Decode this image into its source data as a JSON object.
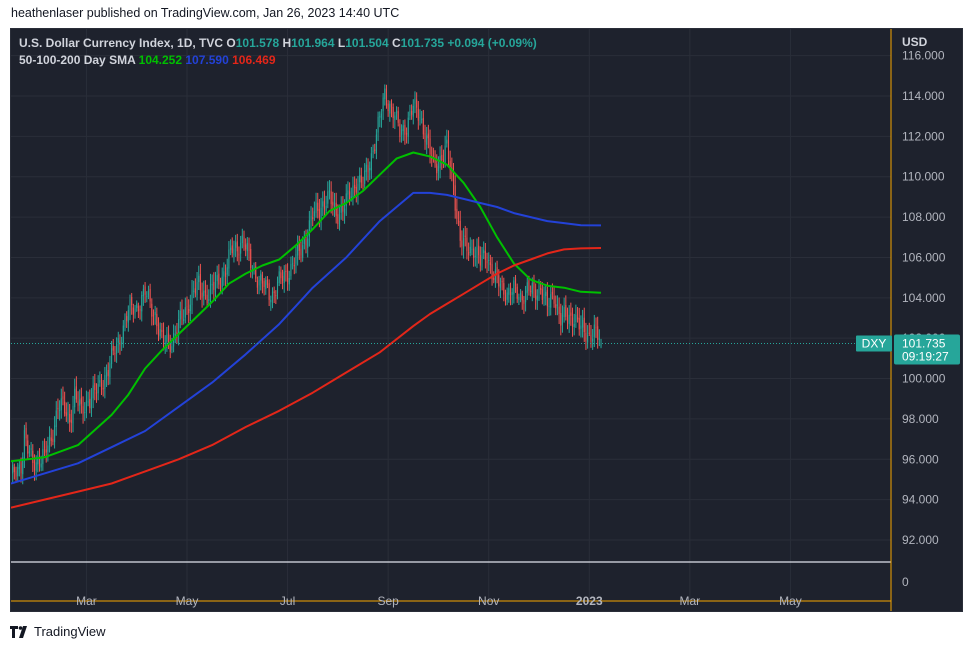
{
  "header": {
    "text": "heathenlaser published on TradingView.com, Jan 26, 2023 14:40 UTC"
  },
  "legend": {
    "symbol": "U.S. Dollar Currency Index, 1D, TVC",
    "o_label": "O",
    "o_value": "101.578",
    "h_label": "H",
    "h_value": "101.964",
    "l_label": "L",
    "l_value": "101.504",
    "c_label": "C",
    "c_value": "101.735",
    "change": "+0.094 (+0.09%)",
    "sma_label": "50-100-200 Day SMA",
    "sma50": "104.252",
    "sma100": "107.590",
    "sma200": "106.469"
  },
  "price_scale": {
    "currency": "USD",
    "bottom_label": "0"
  },
  "price_tag": {
    "ticker": "DXY",
    "price": "101.735",
    "countdown": "09:19:27"
  },
  "footer": {
    "brand": "TradingView"
  },
  "colors": {
    "background": "#1e222d",
    "grid": "#2a2e39",
    "up": "#26a69a",
    "down": "#ef5350",
    "sma50": "#00c000",
    "sma100": "#2342d8",
    "sma200": "#e32619",
    "axis_text": "#b2b5be",
    "crosshair": "#f7a600"
  },
  "chart_data": {
    "type": "candlestick",
    "title": "U.S. Dollar Currency Index, 1D, TVC",
    "ylabel": "USD",
    "ylim": [
      90.5,
      117
    ],
    "yticks": [
      "92.000",
      "94.000",
      "96.000",
      "98.000",
      "100.000",
      "102.000",
      "104.000",
      "106.000",
      "108.000",
      "110.000",
      "112.000",
      "114.000",
      "116.000"
    ],
    "ytick_values": [
      92,
      94,
      96,
      98,
      100,
      102,
      104,
      106,
      108,
      110,
      112,
      114,
      116
    ],
    "xtick_labels": [
      "Mar",
      "May",
      "Jul",
      "Sep",
      "Nov",
      "2023",
      "Mar",
      "May"
    ],
    "xtick_positions": [
      45,
      105,
      165,
      225,
      285,
      345,
      405,
      465
    ],
    "xlim": [
      0,
      525
    ],
    "price_anchors": [
      [
        0,
        95.0
      ],
      [
        6,
        95.8
      ],
      [
        8,
        97.2
      ],
      [
        10,
        96.4
      ],
      [
        13,
        95.8
      ],
      [
        16,
        96.0
      ],
      [
        20,
        96.2
      ],
      [
        24,
        97.0
      ],
      [
        28,
        98.7
      ],
      [
        31,
        98.5
      ],
      [
        35,
        98.0
      ],
      [
        38,
        99.2
      ],
      [
        42,
        98.3
      ],
      [
        46,
        99.0
      ],
      [
        52,
        99.4
      ],
      [
        58,
        100.5
      ],
      [
        64,
        101.8
      ],
      [
        70,
        103.3
      ],
      [
        75,
        103.6
      ],
      [
        80,
        104.2
      ],
      [
        86,
        103.2
      ],
      [
        90,
        101.8
      ],
      [
        96,
        101.9
      ],
      [
        100,
        102.6
      ],
      [
        106,
        103.8
      ],
      [
        112,
        104.6
      ],
      [
        118,
        104.1
      ],
      [
        124,
        104.9
      ],
      [
        128,
        105.3
      ],
      [
        132,
        106.4
      ],
      [
        138,
        106.8
      ],
      [
        142,
        106.0
      ],
      [
        148,
        104.8
      ],
      [
        156,
        104.2
      ],
      [
        162,
        105.0
      ],
      [
        168,
        105.6
      ],
      [
        174,
        106.6
      ],
      [
        180,
        108.0
      ],
      [
        186,
        108.7
      ],
      [
        190,
        108.9
      ],
      [
        194,
        108.2
      ],
      [
        198,
        108.4
      ],
      [
        202,
        109.0
      ],
      [
        206,
        109.8
      ],
      [
        210,
        109.6
      ],
      [
        216,
        111.4
      ],
      [
        220,
        112.8
      ],
      [
        223,
        114.1
      ],
      [
        228,
        113.2
      ],
      [
        232,
        112.2
      ],
      [
        236,
        112.6
      ],
      [
        240,
        113.4
      ],
      [
        244,
        113.1
      ],
      [
        248,
        111.8
      ],
      [
        252,
        110.5
      ],
      [
        256,
        110.9
      ],
      [
        260,
        111.3
      ],
      [
        264,
        109.6
      ],
      [
        268,
        106.8
      ],
      [
        272,
        106.4
      ],
      [
        276,
        106.5
      ],
      [
        280,
        105.7
      ],
      [
        284,
        106.2
      ],
      [
        288,
        105.0
      ],
      [
        292,
        104.6
      ],
      [
        296,
        104.3
      ],
      [
        300,
        104.3
      ],
      [
        304,
        104.1
      ],
      [
        308,
        104.4
      ],
      [
        312,
        104.2
      ],
      [
        316,
        104.6
      ],
      [
        320,
        103.5
      ],
      [
        324,
        104.2
      ],
      [
        328,
        102.9
      ],
      [
        332,
        103.0
      ],
      [
        336,
        103.1
      ],
      [
        340,
        102.4
      ],
      [
        344,
        102.2
      ],
      [
        348,
        102.3
      ],
      [
        352,
        101.7
      ]
    ],
    "series": [
      {
        "name": "SMA 50",
        "color": "#00c000",
        "points": [
          [
            0,
            95.9
          ],
          [
            20,
            96.1
          ],
          [
            40,
            96.7
          ],
          [
            60,
            98.2
          ],
          [
            70,
            99.2
          ],
          [
            80,
            100.5
          ],
          [
            90,
            101.4
          ],
          [
            100,
            102.2
          ],
          [
            110,
            103.0
          ],
          [
            120,
            103.8
          ],
          [
            130,
            104.7
          ],
          [
            140,
            105.2
          ],
          [
            150,
            105.6
          ],
          [
            160,
            105.9
          ],
          [
            170,
            106.6
          ],
          [
            180,
            107.4
          ],
          [
            190,
            108.3
          ],
          [
            200,
            108.7
          ],
          [
            210,
            109.3
          ],
          [
            220,
            110.1
          ],
          [
            230,
            110.9
          ],
          [
            240,
            111.2
          ],
          [
            250,
            111.0
          ],
          [
            260,
            110.6
          ],
          [
            270,
            109.7
          ],
          [
            280,
            108.5
          ],
          [
            290,
            107.0
          ],
          [
            300,
            105.7
          ],
          [
            310,
            104.9
          ],
          [
            320,
            104.6
          ],
          [
            330,
            104.5
          ],
          [
            340,
            104.3
          ],
          [
            352,
            104.25
          ]
        ]
      },
      {
        "name": "SMA 100",
        "color": "#2342d8",
        "points": [
          [
            0,
            94.8
          ],
          [
            20,
            95.3
          ],
          [
            40,
            95.8
          ],
          [
            60,
            96.6
          ],
          [
            80,
            97.4
          ],
          [
            100,
            98.6
          ],
          [
            120,
            99.8
          ],
          [
            140,
            101.2
          ],
          [
            160,
            102.7
          ],
          [
            170,
            103.6
          ],
          [
            180,
            104.5
          ],
          [
            200,
            106.0
          ],
          [
            220,
            107.8
          ],
          [
            240,
            109.2
          ],
          [
            250,
            109.2
          ],
          [
            260,
            109.1
          ],
          [
            270,
            108.9
          ],
          [
            280,
            108.7
          ],
          [
            290,
            108.5
          ],
          [
            300,
            108.2
          ],
          [
            310,
            108.0
          ],
          [
            320,
            107.8
          ],
          [
            330,
            107.7
          ],
          [
            340,
            107.6
          ],
          [
            352,
            107.59
          ]
        ]
      },
      {
        "name": "SMA 200",
        "color": "#e32619",
        "points": [
          [
            0,
            93.6
          ],
          [
            20,
            94.0
          ],
          [
            40,
            94.4
          ],
          [
            60,
            94.8
          ],
          [
            80,
            95.4
          ],
          [
            100,
            96.0
          ],
          [
            120,
            96.7
          ],
          [
            140,
            97.6
          ],
          [
            160,
            98.4
          ],
          [
            180,
            99.3
          ],
          [
            200,
            100.3
          ],
          [
            220,
            101.3
          ],
          [
            240,
            102.6
          ],
          [
            250,
            103.2
          ],
          [
            260,
            103.7
          ],
          [
            270,
            104.2
          ],
          [
            280,
            104.7
          ],
          [
            290,
            105.2
          ],
          [
            300,
            105.6
          ],
          [
            310,
            105.9
          ],
          [
            320,
            106.2
          ],
          [
            330,
            106.4
          ],
          [
            340,
            106.45
          ],
          [
            352,
            106.469
          ]
        ]
      }
    ],
    "last": {
      "open": 101.578,
      "high": 101.964,
      "low": 101.504,
      "close": 101.735
    }
  }
}
